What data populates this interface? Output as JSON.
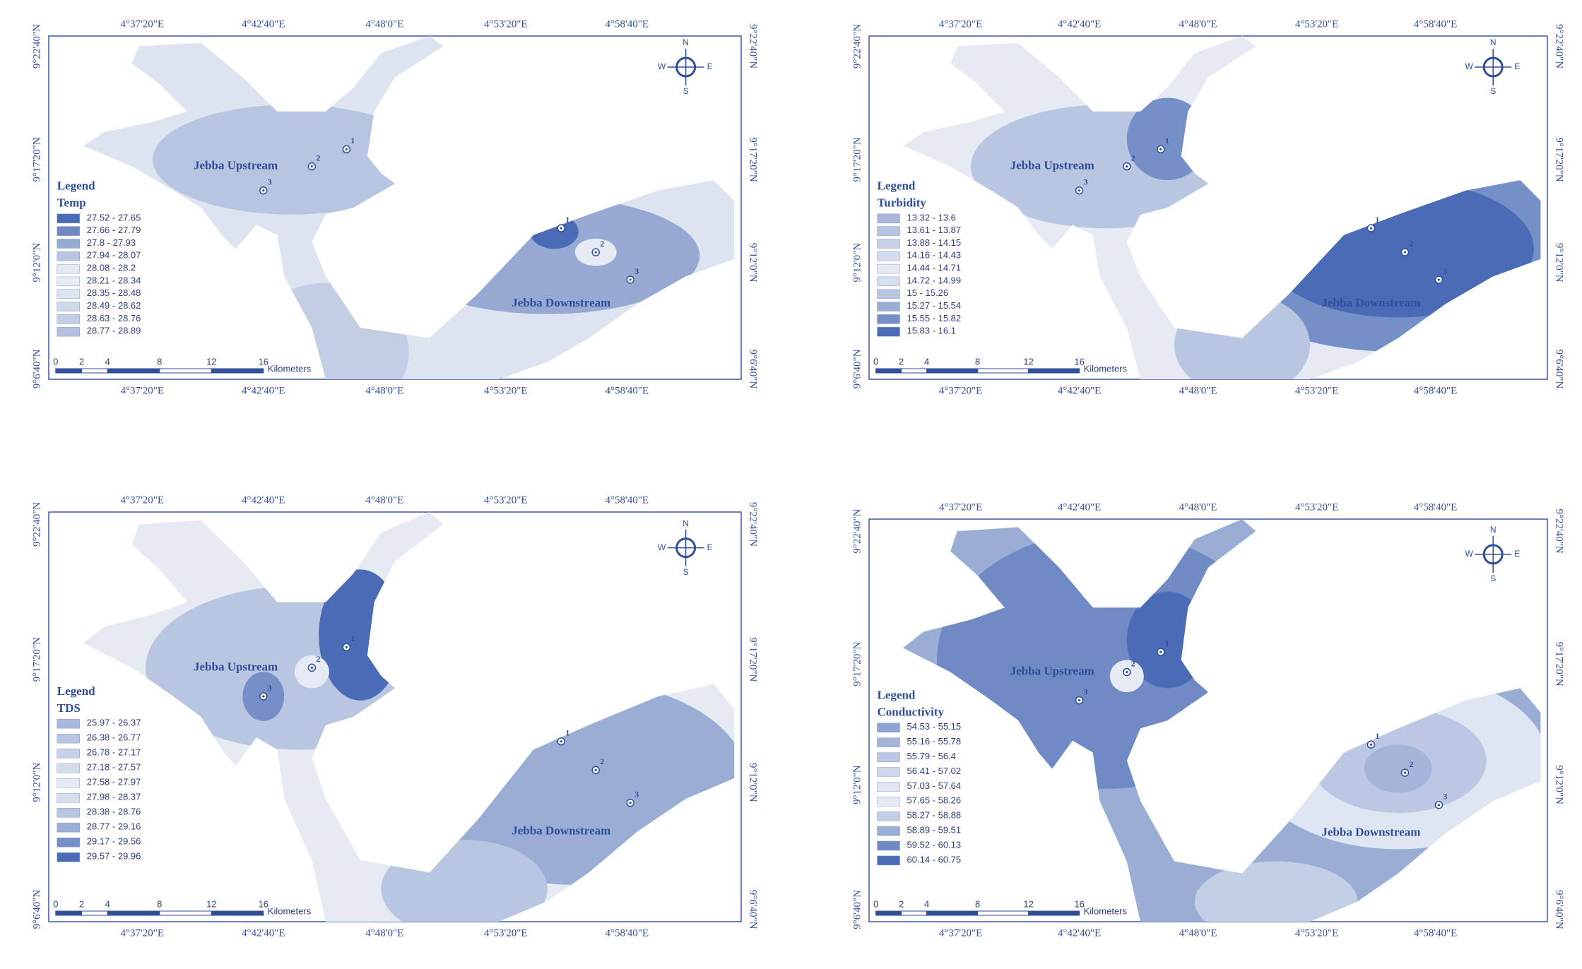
{
  "longitude_ticks": [
    "4°37'20\"E",
    "4°42'40\"E",
    "4°48'0\"E",
    "4°53'20\"E",
    "4°58'40\"E"
  ],
  "latitude_ticks": [
    "9°22'40\"N",
    "9°17'20\"N",
    "9°12'0\"N",
    "9°6'40\"N"
  ],
  "scale_labels": [
    "0",
    "2",
    "4",
    "8",
    "12",
    "16"
  ],
  "scale_unit": "Kilometers",
  "compass": {
    "n": "N",
    "e": "E",
    "s": "S",
    "w": "W"
  },
  "site_labels": [
    "1",
    "2",
    "3"
  ],
  "upstream_label": "Jebba Upstream",
  "downstream_label": "Jebba Downstream",
  "panels": [
    {
      "legend_heading": "Legend",
      "legend_title": "Temp",
      "classes": [
        "27.52 - 27.65",
        "27.66 - 27.79",
        "27.8 - 27.93",
        "27.94 - 28.07",
        "28.08 - 28.2",
        "28.21 - 28.34",
        "28.35 - 28.48",
        "28.49 - 28.62",
        "28.63 - 28.76",
        "28.77 - 28.89"
      ],
      "colors": [
        "#4a6bb5",
        "#6e89c2",
        "#96a9d2",
        "#b8c5e1",
        "#e3e8f2",
        "#e6eaf3",
        "#dde3ef",
        "#d0d8ea",
        "#c3cde4",
        "#b3c1de"
      ]
    },
    {
      "legend_heading": "Legend",
      "legend_title": "Turbidity",
      "classes": [
        "13.32 - 13.6",
        "13.61 - 13.87",
        "13.88 - 14.15",
        "14.16 - 14.43",
        "14.44 - 14.71",
        "14.72 - 14.99",
        "15 - 15.26",
        "15.27 - 15.54",
        "15.55 - 15.82",
        "15.83 - 16.1"
      ],
      "colors": [
        "#a9b8da",
        "#b7c4e0",
        "#c6d0e6",
        "#d5dcec",
        "#e6eaf3",
        "#d7deed",
        "#b9c6e1",
        "#9aaed5",
        "#7590c7",
        "#4a6bb5"
      ]
    },
    {
      "legend_heading": "Legend",
      "legend_title": "TDS",
      "classes": [
        "25.97 - 26.37",
        "26.38 - 26.77",
        "26.78 - 27.17",
        "27.18 - 27.57",
        "27.58 - 27.97",
        "27.98 - 28.37",
        "28.38 - 28.76",
        "28.77 - 29.16",
        "29.17 - 29.56",
        "29.57 - 29.96"
      ],
      "colors": [
        "#a9b8da",
        "#b7c4e0",
        "#c6d0e6",
        "#d5dcec",
        "#e6eaf3",
        "#d7deed",
        "#b9c6e1",
        "#9aaed5",
        "#7590c7",
        "#4a6bb5"
      ]
    },
    {
      "legend_heading": "Legend",
      "legend_title": "Conductivity",
      "classes": [
        "54.53 - 55.15",
        "55.16 - 55.78",
        "55.79 - 56.4",
        "56.41 - 57.02",
        "57.03 - 57.64",
        "57.65 - 58.26",
        "58.27 - 58.88",
        "58.89 - 59.51",
        "59.52 - 60.13",
        "60.14 - 60.75"
      ],
      "colors": [
        "#8ea3d1",
        "#a5b5da",
        "#bcc8e3",
        "#d0d8eb",
        "#dfe5f1",
        "#e6eaf3",
        "#c4cee5",
        "#9aaed5",
        "#6f8ac5",
        "#4a6bb5"
      ]
    }
  ]
}
